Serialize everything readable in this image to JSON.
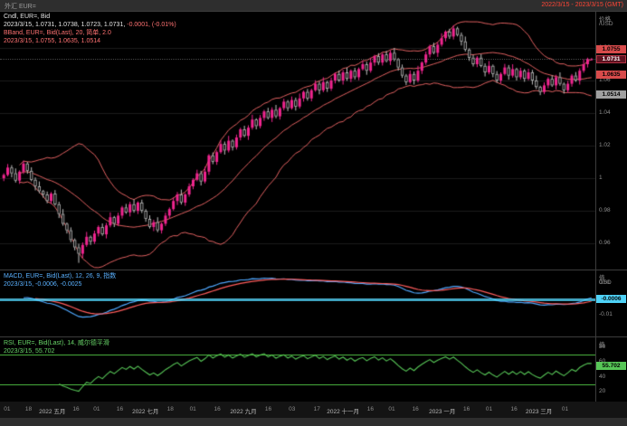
{
  "header": {
    "left": "外汇 EUR=",
    "right": "2022/3/15 - 2023/3/15 (GMT)"
  },
  "main_legend": {
    "line1": "Cndl, EUR=, Bid",
    "line2_white": "2023/3/15, 1.0731, 1.0738, 1.0723, 1.0731,",
    "line2_change": "-0.0001, (-0.01%)",
    "line3": "BBand, EUR=, Bid(Last), 20, 简单, 2.0",
    "line4": "2023/3/15, 1.0755, 1.0635, 1.0514"
  },
  "macd_legend": {
    "line1": "MACD, EUR=, Bid(Last), 12, 26, 9, 指数",
    "line2": "2023/3/15, -0.0006, -0.0025"
  },
  "rsi_legend": {
    "line1": "RSI, EUR=, Bid(Last), 14, 威尔德平滑",
    "line2": "2023/3/15, 55.702"
  },
  "price_axis": {
    "title_1": "价格",
    "title_2": "/USD",
    "ticks": [
      "1.08",
      "1.06",
      "1.04",
      "1.02",
      "1",
      "0.98",
      "0.96"
    ],
    "badges": {
      "bb_upper": "1.0755",
      "last": "1.0731",
      "bb_mid": "1.0635",
      "bb_lower": "1.0514"
    }
  },
  "macd_axis": {
    "title_1": "值",
    "title_2": "USD",
    "ticks": [
      "0.01",
      "0",
      "-0.01"
    ],
    "badge": "-0.0006"
  },
  "rsi_axis": {
    "title_1": "值",
    "ticks": [
      "80",
      "60",
      "40",
      "20"
    ],
    "badge": "55.702"
  },
  "x_axis": {
    "labels": [
      {
        "p": 0.012,
        "t": "01",
        "m": 0
      },
      {
        "p": 0.048,
        "t": "18",
        "m": 0
      },
      {
        "p": 0.088,
        "t": "2022 五月",
        "m": 1
      },
      {
        "p": 0.128,
        "t": "16",
        "m": 0
      },
      {
        "p": 0.163,
        "t": "01",
        "m": 0
      },
      {
        "p": 0.202,
        "t": "16",
        "m": 0
      },
      {
        "p": 0.245,
        "t": "2022 七月",
        "m": 1
      },
      {
        "p": 0.287,
        "t": "18",
        "m": 0
      },
      {
        "p": 0.325,
        "t": "01",
        "m": 0
      },
      {
        "p": 0.366,
        "t": "16",
        "m": 0
      },
      {
        "p": 0.41,
        "t": "2022 九月",
        "m": 1
      },
      {
        "p": 0.452,
        "t": "16",
        "m": 0
      },
      {
        "p": 0.492,
        "t": "03",
        "m": 0
      },
      {
        "p": 0.534,
        "t": "17",
        "m": 0
      },
      {
        "p": 0.578,
        "t": "2022 十一月",
        "m": 1
      },
      {
        "p": 0.624,
        "t": "16",
        "m": 0
      },
      {
        "p": 0.66,
        "t": "01",
        "m": 0
      },
      {
        "p": 0.7,
        "t": "16",
        "m": 0
      },
      {
        "p": 0.745,
        "t": "2023 一月",
        "m": 1
      },
      {
        "p": 0.786,
        "t": "16",
        "m": 0
      },
      {
        "p": 0.824,
        "t": "01",
        "m": 0
      },
      {
        "p": 0.866,
        "t": "16",
        "m": 0
      },
      {
        "p": 0.908,
        "t": "2023 三月",
        "m": 1
      },
      {
        "p": 0.952,
        "t": "01",
        "m": 0
      }
    ]
  },
  "colors": {
    "up": "#f0258f",
    "down_fill": "#000000",
    "down_border": "#c0c0c0",
    "bb": "#e06060",
    "macd": "#4fa8ff",
    "signal": "#ff5c5c",
    "macd_value_line": "#4fd2f7",
    "rsi": "#57c657",
    "grid": "#1b1b1b"
  },
  "chart_data": {
    "type": "candlestick",
    "instrument": "EUR=",
    "field": "Bid",
    "interval": "daily",
    "date_range": "2022/3/15 - 2023/3/15 (GMT)",
    "price_range": [
      0.945,
      1.095
    ],
    "last_ohlc": {
      "date": "2023/3/15",
      "open": 1.0731,
      "high": 1.0738,
      "low": 1.0723,
      "close": 1.0731,
      "change": -0.0001,
      "change_pct": "-0.01%"
    },
    "overlays": [
      {
        "type": "bollinger",
        "period": 20,
        "mode": "简单",
        "stddev": 2.0,
        "last_upper": 1.0755,
        "last_mid": 1.0635,
        "last_lower": 1.0514
      }
    ],
    "panels": [
      {
        "type": "MACD",
        "params": [
          12,
          26,
          9
        ],
        "mode": "指数",
        "last_macd": -0.0006,
        "last_signal": -0.0025,
        "range": [
          -0.02,
          0.016
        ]
      },
      {
        "type": "RSI",
        "period": 14,
        "mode": "威尔德平滑",
        "last": 55.702,
        "bands": [
          70,
          30
        ],
        "range": [
          12,
          92
        ]
      }
    ],
    "candles": [
      [
        1.0,
        1.003,
        0.9982,
        1.002
      ],
      [
        1.002,
        1.0087,
        1.0011,
        1.0065
      ],
      [
        1.0065,
        1.008,
        1.0005,
        1.003
      ],
      [
        1.003,
        1.006,
        0.9973,
        0.9985
      ],
      [
        0.9985,
        1.0048,
        0.9965,
        1.004
      ],
      [
        1.004,
        1.0108,
        1.0026,
        1.009
      ],
      [
        1.009,
        1.01,
        1.0027,
        1.0045
      ],
      [
        1.0045,
        1.0067,
        0.9981,
        0.999
      ],
      [
        0.999,
        1.0005,
        0.9925,
        0.995
      ],
      [
        0.995,
        0.998,
        0.9908,
        0.992
      ],
      [
        0.992,
        0.9928,
        0.988,
        0.99
      ],
      [
        0.99,
        0.9918,
        0.9846,
        0.986
      ],
      [
        0.986,
        0.9915,
        0.9842,
        0.9905
      ],
      [
        0.9905,
        0.9927,
        0.9831,
        0.984
      ],
      [
        0.984,
        0.9855,
        0.9755,
        0.978
      ],
      [
        0.978,
        0.981,
        0.9708,
        0.972
      ],
      [
        0.972,
        0.9728,
        0.966,
        0.968
      ],
      [
        0.968,
        0.9698,
        0.9606,
        0.962
      ],
      [
        0.962,
        0.963,
        0.9557,
        0.9575
      ],
      [
        0.9575,
        0.9597,
        0.948,
        0.9536
      ],
      [
        0.9536,
        0.9605,
        0.9511,
        0.959
      ],
      [
        0.959,
        0.967,
        0.9578,
        0.964
      ],
      [
        0.964,
        0.9648,
        0.959,
        0.961
      ],
      [
        0.961,
        0.9678,
        0.9596,
        0.966
      ],
      [
        0.966,
        0.971,
        0.9642,
        0.97
      ],
      [
        0.97,
        0.9722,
        0.9646,
        0.9655
      ],
      [
        0.9655,
        0.9725,
        0.963,
        0.971
      ],
      [
        0.971,
        0.979,
        0.9698,
        0.976
      ],
      [
        0.976,
        0.9768,
        0.97,
        0.972
      ],
      [
        0.972,
        0.9788,
        0.9706,
        0.977
      ],
      [
        0.977,
        0.983,
        0.9752,
        0.982
      ],
      [
        0.982,
        0.9842,
        0.9781,
        0.979
      ],
      [
        0.979,
        0.9855,
        0.9765,
        0.984
      ],
      [
        0.984,
        0.987,
        0.9788,
        0.98
      ],
      [
        0.98,
        0.9858,
        0.978,
        0.985
      ],
      [
        0.985,
        0.9868,
        0.9786,
        0.98
      ],
      [
        0.98,
        0.981,
        0.9732,
        0.975
      ],
      [
        0.975,
        0.9772,
        0.9691,
        0.97
      ],
      [
        0.97,
        0.9745,
        0.9675,
        0.973
      ],
      [
        0.973,
        0.976,
        0.9668,
        0.968
      ],
      [
        0.968,
        0.9728,
        0.966,
        0.972
      ],
      [
        0.972,
        0.9788,
        0.9706,
        0.977
      ],
      [
        0.977,
        0.982,
        0.9752,
        0.981
      ],
      [
        0.981,
        0.9882,
        0.9801,
        0.986
      ],
      [
        0.986,
        0.9915,
        0.9835,
        0.99
      ],
      [
        0.99,
        0.993,
        0.9838,
        0.985
      ],
      [
        0.985,
        0.9908,
        0.983,
        0.99
      ],
      [
        0.99,
        0.9968,
        0.9886,
        0.995
      ],
      [
        0.995,
        1.0,
        0.9932,
        0.999
      ],
      [
        0.999,
        1.0052,
        0.9981,
        1.003
      ],
      [
        1.003,
        1.0045,
        0.9955,
        0.998
      ],
      [
        0.998,
        1.007,
        0.9968,
        1.004
      ],
      [
        1.004,
        1.0148,
        1.002,
        1.014
      ],
      [
        1.014,
        1.0158,
        1.0086,
        1.01
      ],
      [
        1.01,
        1.017,
        1.0082,
        1.016
      ],
      [
        1.016,
        1.0232,
        1.0151,
        1.021
      ],
      [
        1.021,
        1.0225,
        1.0145,
        1.017
      ],
      [
        1.017,
        1.026,
        1.0158,
        1.023
      ],
      [
        1.023,
        1.0238,
        1.017,
        1.019
      ],
      [
        1.019,
        1.0268,
        1.0176,
        1.025
      ],
      [
        1.025,
        1.031,
        1.0232,
        1.03
      ],
      [
        1.03,
        1.0322,
        1.0251,
        1.026
      ],
      [
        1.026,
        1.0325,
        1.0235,
        1.031
      ],
      [
        1.031,
        1.039,
        1.0298,
        1.036
      ],
      [
        1.036,
        1.0368,
        1.03,
        1.032
      ],
      [
        1.032,
        1.0388,
        1.0306,
        1.037
      ],
      [
        1.037,
        1.042,
        1.0352,
        1.041
      ],
      [
        1.041,
        1.0432,
        1.0361,
        1.037
      ],
      [
        1.037,
        1.0435,
        1.0345,
        1.042
      ],
      [
        1.042,
        1.045,
        1.0368,
        1.038
      ],
      [
        1.038,
        1.0438,
        1.036,
        1.043
      ],
      [
        1.043,
        1.0488,
        1.0416,
        1.047
      ],
      [
        1.047,
        1.048,
        1.0412,
        1.043
      ],
      [
        1.043,
        1.0502,
        1.0421,
        1.048
      ],
      [
        1.048,
        1.0495,
        1.0415,
        1.044
      ],
      [
        1.044,
        1.052,
        1.0428,
        1.049
      ],
      [
        1.049,
        1.0538,
        1.047,
        1.053
      ],
      [
        1.053,
        1.0548,
        1.0476,
        1.049
      ],
      [
        1.049,
        1.055,
        1.0472,
        1.054
      ],
      [
        1.054,
        1.0602,
        1.0531,
        1.058
      ],
      [
        1.058,
        1.0595,
        1.0515,
        1.054
      ],
      [
        1.054,
        1.062,
        1.0528,
        1.059
      ],
      [
        1.059,
        1.0598,
        1.053,
        1.055
      ],
      [
        1.055,
        1.0618,
        1.0536,
        1.06
      ],
      [
        1.06,
        1.065,
        1.0582,
        1.064
      ],
      [
        1.064,
        1.0662,
        1.0591,
        1.06
      ],
      [
        1.06,
        1.0665,
        1.0575,
        1.065
      ],
      [
        1.065,
        1.068,
        1.0598,
        1.061
      ],
      [
        1.061,
        1.0668,
        1.059,
        1.066
      ],
      [
        1.066,
        1.0678,
        1.0606,
        1.062
      ],
      [
        1.062,
        1.068,
        1.0602,
        1.067
      ],
      [
        1.067,
        1.0722,
        1.0661,
        1.07
      ],
      [
        1.07,
        1.0715,
        1.0635,
        1.066
      ],
      [
        1.066,
        1.074,
        1.0648,
        1.071
      ],
      [
        1.071,
        1.0758,
        1.069,
        1.075
      ],
      [
        1.075,
        1.0768,
        1.0696,
        1.071
      ],
      [
        1.071,
        1.077,
        1.0692,
        1.076
      ],
      [
        1.076,
        1.0782,
        1.0711,
        1.072
      ],
      [
        1.072,
        1.0785,
        1.0695,
        1.077
      ],
      [
        1.077,
        1.08,
        1.0718,
        1.073
      ],
      [
        1.073,
        1.0738,
        1.066,
        1.068
      ],
      [
        1.068,
        1.0698,
        1.0616,
        1.063
      ],
      [
        1.063,
        1.064,
        1.0572,
        1.059
      ],
      [
        1.059,
        1.0662,
        1.0581,
        1.064
      ],
      [
        1.064,
        1.0655,
        1.0575,
        1.06
      ],
      [
        1.06,
        1.069,
        1.0588,
        1.066
      ],
      [
        1.066,
        1.0718,
        1.064,
        1.071
      ],
      [
        1.071,
        1.0778,
        1.0696,
        1.076
      ],
      [
        1.076,
        1.082,
        1.0742,
        1.081
      ],
      [
        1.081,
        1.0832,
        1.0761,
        1.077
      ],
      [
        1.077,
        1.0835,
        1.0745,
        1.082
      ],
      [
        1.082,
        1.089,
        1.0808,
        1.086
      ],
      [
        1.086,
        1.0908,
        1.084,
        1.09
      ],
      [
        1.09,
        1.0918,
        1.0856,
        1.087
      ],
      [
        1.087,
        1.094,
        1.0852,
        1.092
      ],
      [
        1.092,
        1.093,
        1.0871,
        1.088
      ],
      [
        1.088,
        1.0895,
        1.0815,
        1.084
      ],
      [
        1.084,
        1.087,
        1.0778,
        1.079
      ],
      [
        1.079,
        1.0798,
        1.072,
        1.074
      ],
      [
        1.074,
        1.0758,
        1.0686,
        1.07
      ],
      [
        1.07,
        1.075,
        1.0682,
        1.074
      ],
      [
        1.074,
        1.0762,
        1.0681,
        1.069
      ],
      [
        1.069,
        1.0705,
        1.0625,
        1.065
      ],
      [
        1.065,
        1.072,
        1.0638,
        1.069
      ],
      [
        1.069,
        1.0698,
        1.062,
        1.064
      ],
      [
        1.064,
        1.0658,
        1.0586,
        1.06
      ],
      [
        1.06,
        1.065,
        1.0582,
        1.064
      ],
      [
        1.064,
        1.0702,
        1.0631,
        1.068
      ],
      [
        1.068,
        1.0695,
        1.0605,
        1.063
      ],
      [
        1.063,
        1.07,
        1.0618,
        1.067
      ],
      [
        1.067,
        1.0678,
        1.06,
        1.062
      ],
      [
        1.062,
        1.0678,
        1.0606,
        1.066
      ],
      [
        1.066,
        1.067,
        1.0592,
        1.061
      ],
      [
        1.061,
        1.0672,
        1.0601,
        1.065
      ],
      [
        1.065,
        1.0665,
        1.0575,
        1.06
      ],
      [
        1.06,
        1.063,
        1.0548,
        1.056
      ],
      [
        1.056,
        1.0568,
        1.051,
        1.053
      ],
      [
        1.053,
        1.0588,
        1.0516,
        1.057
      ],
      [
        1.057,
        1.062,
        1.0552,
        1.061
      ],
      [
        1.061,
        1.0632,
        1.0561,
        1.057
      ],
      [
        1.057,
        1.0635,
        1.0545,
        1.062
      ],
      [
        1.062,
        1.065,
        1.0568,
        1.058
      ],
      [
        1.058,
        1.0588,
        1.052,
        1.054
      ],
      [
        1.054,
        1.0598,
        1.0526,
        1.058
      ],
      [
        1.058,
        1.064,
        1.0562,
        1.063
      ],
      [
        1.063,
        1.0652,
        1.0591,
        1.06
      ],
      [
        1.06,
        1.0675,
        1.0575,
        1.066
      ],
      [
        1.066,
        1.073,
        1.0648,
        1.07
      ],
      [
        1.07,
        1.074,
        1.068,
        1.0732
      ],
      [
        1.0731,
        1.0738,
        1.0723,
        1.0731
      ]
    ]
  }
}
